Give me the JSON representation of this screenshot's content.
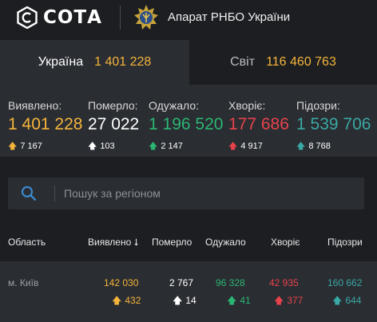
{
  "brand": {
    "logo_text": "СОТА",
    "agency": "Апарат РНБО України"
  },
  "tabs": {
    "ukraine": {
      "label": "Україна",
      "value": "1 401 228"
    },
    "world": {
      "label": "Світ",
      "value": "116 460 763"
    }
  },
  "stats": [
    {
      "label": "Виявлено:",
      "value": "1 401 228",
      "delta": "7 167",
      "color": "#f5b43a"
    },
    {
      "label": "Померло:",
      "value": "27 022",
      "delta": "103",
      "color": "#ffffff"
    },
    {
      "label": "Одужало:",
      "value": "1 196 520",
      "delta": "2 147",
      "color": "#2bb673"
    },
    {
      "label": "Хворіє:",
      "value": "177 686",
      "delta": "4 917",
      "color": "#e8424c"
    },
    {
      "label": "Підозри:",
      "value": "1 539 706",
      "delta": "8 768",
      "color": "#3aa8a4"
    }
  ],
  "search": {
    "placeholder": "Пошук за регіоном"
  },
  "table": {
    "headers": {
      "region": "Область",
      "detected": "Виявлено",
      "died": "Померло",
      "recovered": "Одужало",
      "sick": "Хворіє",
      "suspected": "Підозри"
    },
    "rows": [
      {
        "region": "м. Київ",
        "detected": "142 030",
        "detected_delta": "432",
        "died": "2 767",
        "died_delta": "14",
        "recovered": "96 328",
        "recovered_delta": "41",
        "sick": "42 935",
        "sick_delta": "377",
        "suspected": "160 662",
        "suspected_delta": "644"
      }
    ]
  }
}
